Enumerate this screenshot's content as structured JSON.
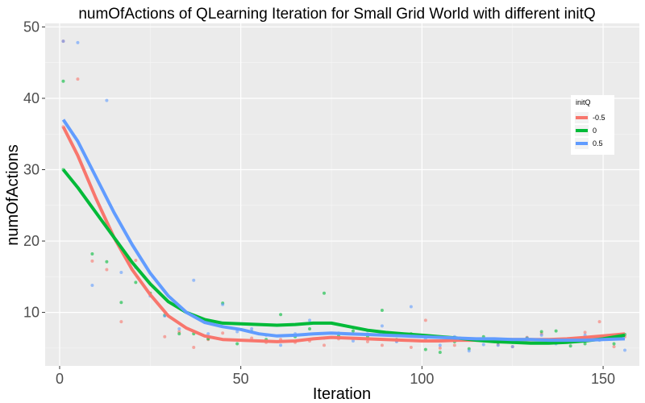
{
  "chart_data": {
    "type": "scatter",
    "title": "numOfActions of QLearning Iteration for Small Grid World with different initQ",
    "xlabel": "Iteration",
    "ylabel": "numOfActions",
    "xlim": [
      -4,
      160
    ],
    "ylim": [
      2.5,
      50.5
    ],
    "x_ticks": [
      0,
      50,
      100,
      150
    ],
    "y_ticks": [
      10,
      20,
      30,
      40,
      50
    ],
    "grid": true,
    "legend": {
      "title": "initQ",
      "position": "right"
    },
    "series": [
      {
        "name": "-0.5",
        "color": "#F8766D",
        "points": [
          [
            1,
            48
          ],
          [
            1,
            36
          ],
          [
            5,
            42.7
          ],
          [
            9,
            17.2
          ],
          [
            13,
            16
          ],
          [
            17,
            8.7
          ],
          [
            21,
            17.3
          ],
          [
            25,
            12.5
          ],
          [
            29,
            6.6
          ],
          [
            33,
            7.3
          ],
          [
            37,
            5.1
          ],
          [
            41,
            6.2
          ],
          [
            45,
            7.1
          ],
          [
            53,
            6.4
          ],
          [
            57,
            5.8
          ],
          [
            61,
            6.2
          ],
          [
            65,
            5.8
          ],
          [
            69,
            6.0
          ],
          [
            73,
            5.4
          ],
          [
            77,
            6.3
          ],
          [
            85,
            5.9
          ],
          [
            89,
            5.4
          ],
          [
            93,
            6.0
          ],
          [
            97,
            5.1
          ],
          [
            101,
            8.9
          ],
          [
            105,
            5.0
          ],
          [
            109,
            5.4
          ],
          [
            113,
            6.1
          ],
          [
            121,
            5.5
          ],
          [
            125,
            5.2
          ],
          [
            129,
            6.5
          ],
          [
            133,
            7.0
          ],
          [
            137,
            6.2
          ],
          [
            141,
            5.8
          ],
          [
            145,
            7.2
          ],
          [
            149,
            8.7
          ],
          [
            153,
            5.2
          ],
          [
            156,
            6.6
          ]
        ],
        "smooth": [
          [
            1,
            36
          ],
          [
            5,
            32
          ],
          [
            10,
            26
          ],
          [
            15,
            20.5
          ],
          [
            20,
            16
          ],
          [
            25,
            12.5
          ],
          [
            30,
            9.5
          ],
          [
            35,
            7.8
          ],
          [
            40,
            6.7
          ],
          [
            45,
            6.2
          ],
          [
            50,
            6.1
          ],
          [
            55,
            6.0
          ],
          [
            60,
            5.9
          ],
          [
            65,
            6.0
          ],
          [
            70,
            6.3
          ],
          [
            75,
            6.5
          ],
          [
            80,
            6.4
          ],
          [
            85,
            6.3
          ],
          [
            90,
            6.2
          ],
          [
            95,
            6.1
          ],
          [
            100,
            6.0
          ],
          [
            105,
            6.0
          ],
          [
            110,
            6.1
          ],
          [
            115,
            6.1
          ],
          [
            120,
            6.2
          ],
          [
            125,
            6.2
          ],
          [
            130,
            6.2
          ],
          [
            135,
            6.2
          ],
          [
            140,
            6.3
          ],
          [
            145,
            6.5
          ],
          [
            150,
            6.7
          ],
          [
            156,
            7.0
          ]
        ]
      },
      {
        "name": "0",
        "color": "#00BA38",
        "points": [
          [
            1,
            42.4
          ],
          [
            1,
            30
          ],
          [
            9,
            18.2
          ],
          [
            13,
            17.1
          ],
          [
            17,
            11.4
          ],
          [
            21,
            14.2
          ],
          [
            25,
            12.7
          ],
          [
            29,
            9.6
          ],
          [
            33,
            7.0
          ],
          [
            37,
            7.0
          ],
          [
            41,
            6.3
          ],
          [
            45,
            11.3
          ],
          [
            49,
            5.6
          ],
          [
            53,
            7.3
          ],
          [
            57,
            6.2
          ],
          [
            61,
            9.7
          ],
          [
            65,
            6.6
          ],
          [
            69,
            7.7
          ],
          [
            73,
            12.7
          ],
          [
            77,
            6.7
          ],
          [
            81,
            7.4
          ],
          [
            85,
            6.6
          ],
          [
            89,
            10.3
          ],
          [
            93,
            6.2
          ],
          [
            97,
            7.0
          ],
          [
            101,
            4.8
          ],
          [
            105,
            4.4
          ],
          [
            109,
            5.9
          ],
          [
            113,
            4.9
          ],
          [
            117,
            6.6
          ],
          [
            121,
            5.8
          ],
          [
            125,
            5.8
          ],
          [
            129,
            6.4
          ],
          [
            133,
            7.3
          ],
          [
            137,
            7.4
          ],
          [
            141,
            5.3
          ],
          [
            145,
            5.6
          ],
          [
            149,
            6.6
          ],
          [
            153,
            5.6
          ],
          [
            156,
            6.9
          ]
        ],
        "smooth": [
          [
            1,
            30
          ],
          [
            5,
            27.5
          ],
          [
            10,
            24
          ],
          [
            15,
            20.5
          ],
          [
            20,
            17
          ],
          [
            25,
            14
          ],
          [
            30,
            11.5
          ],
          [
            35,
            10
          ],
          [
            40,
            9
          ],
          [
            45,
            8.5
          ],
          [
            50,
            8.4
          ],
          [
            55,
            8.3
          ],
          [
            60,
            8.2
          ],
          [
            65,
            8.3
          ],
          [
            70,
            8.5
          ],
          [
            75,
            8.5
          ],
          [
            80,
            8.0
          ],
          [
            85,
            7.5
          ],
          [
            90,
            7.2
          ],
          [
            95,
            7.0
          ],
          [
            100,
            6.8
          ],
          [
            105,
            6.6
          ],
          [
            110,
            6.4
          ],
          [
            115,
            6.1
          ],
          [
            120,
            5.9
          ],
          [
            125,
            5.8
          ],
          [
            130,
            5.7
          ],
          [
            135,
            5.7
          ],
          [
            140,
            5.8
          ],
          [
            145,
            6.0
          ],
          [
            150,
            6.3
          ],
          [
            156,
            6.8
          ]
        ]
      },
      {
        "name": "0.5",
        "color": "#619CFF",
        "points": [
          [
            1,
            48
          ],
          [
            5,
            47.8
          ],
          [
            9,
            13.8
          ],
          [
            13,
            39.7
          ],
          [
            17,
            15.6
          ],
          [
            21,
            16.3
          ],
          [
            25,
            12.3
          ],
          [
            29,
            9.5
          ],
          [
            33,
            7.7
          ],
          [
            37,
            14.5
          ],
          [
            41,
            7.0
          ],
          [
            45,
            11.1
          ],
          [
            49,
            7.3
          ],
          [
            53,
            7.7
          ],
          [
            57,
            6.8
          ],
          [
            61,
            5.4
          ],
          [
            65,
            7.0
          ],
          [
            69,
            8.9
          ],
          [
            73,
            6.4
          ],
          [
            77,
            7.1
          ],
          [
            81,
            6.0
          ],
          [
            85,
            7.4
          ],
          [
            89,
            8.1
          ],
          [
            93,
            5.9
          ],
          [
            97,
            10.8
          ],
          [
            101,
            6.3
          ],
          [
            105,
            5.4
          ],
          [
            109,
            6.6
          ],
          [
            113,
            4.6
          ],
          [
            117,
            5.5
          ],
          [
            121,
            5.4
          ],
          [
            125,
            5.2
          ],
          [
            129,
            6.4
          ],
          [
            133,
            6.8
          ],
          [
            137,
            5.6
          ],
          [
            141,
            5.9
          ],
          [
            145,
            6.8
          ],
          [
            149,
            6.1
          ],
          [
            153,
            6.7
          ],
          [
            156,
            4.7
          ]
        ],
        "smooth": [
          [
            1,
            37
          ],
          [
            5,
            34
          ],
          [
            10,
            29
          ],
          [
            15,
            24
          ],
          [
            20,
            19.5
          ],
          [
            25,
            15.5
          ],
          [
            30,
            12.3
          ],
          [
            35,
            10
          ],
          [
            40,
            8.6
          ],
          [
            45,
            8.0
          ],
          [
            50,
            7.6
          ],
          [
            55,
            7.0
          ],
          [
            60,
            6.7
          ],
          [
            65,
            6.8
          ],
          [
            70,
            7.0
          ],
          [
            75,
            7.1
          ],
          [
            80,
            7.0
          ],
          [
            85,
            6.9
          ],
          [
            90,
            6.8
          ],
          [
            95,
            6.7
          ],
          [
            100,
            6.6
          ],
          [
            105,
            6.5
          ],
          [
            110,
            6.4
          ],
          [
            115,
            6.3
          ],
          [
            120,
            6.3
          ],
          [
            125,
            6.2
          ],
          [
            130,
            6.2
          ],
          [
            135,
            6.1
          ],
          [
            140,
            6.1
          ],
          [
            145,
            6.1
          ],
          [
            150,
            6.2
          ],
          [
            156,
            6.3
          ]
        ]
      }
    ]
  }
}
